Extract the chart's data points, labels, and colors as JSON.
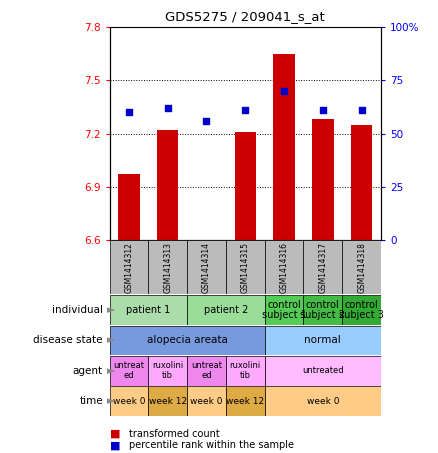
{
  "title": "GDS5275 / 209041_s_at",
  "samples": [
    "GSM1414312",
    "GSM1414313",
    "GSM1414314",
    "GSM1414315",
    "GSM1414316",
    "GSM1414317",
    "GSM1414318"
  ],
  "red_values": [
    6.97,
    7.22,
    6.6,
    7.21,
    7.65,
    7.28,
    7.25
  ],
  "blue_values": [
    60,
    62,
    56,
    61,
    70,
    61,
    61
  ],
  "ylim_left": [
    6.6,
    7.8
  ],
  "ylim_right": [
    0,
    100
  ],
  "yticks_left": [
    6.6,
    6.9,
    7.2,
    7.5,
    7.8
  ],
  "yticks_right": [
    0,
    25,
    50,
    75,
    100
  ],
  "ytick_labels_left": [
    "6.6",
    "6.9",
    "7.2",
    "7.5",
    "7.8"
  ],
  "ytick_labels_right": [
    "0",
    "25",
    "50",
    "75",
    "100%"
  ],
  "bar_color": "#cc0000",
  "dot_color": "#0000cc",
  "ind_spans": [
    [
      0,
      2,
      "patient 1"
    ],
    [
      2,
      4,
      "patient 2"
    ],
    [
      4,
      5,
      "control\nsubject 1"
    ],
    [
      5,
      6,
      "control\nsubject 2"
    ],
    [
      6,
      7,
      "control\nsubject 3"
    ]
  ],
  "ind_colors": [
    "#aaffaa",
    "#99ee99",
    "#88ee88",
    "#77dd77",
    "#66cc66"
  ],
  "dis_spans": [
    [
      0,
      4,
      "alopecia areata"
    ],
    [
      4,
      7,
      "normal"
    ]
  ],
  "dis_colors": [
    "#7799ee",
    "#99bbff"
  ],
  "agt_spans": [
    [
      0,
      1,
      "untreat\ned"
    ],
    [
      1,
      2,
      "ruxolini\ntib"
    ],
    [
      2,
      3,
      "untreat\ned"
    ],
    [
      3,
      4,
      "ruxolini\ntib"
    ],
    [
      4,
      7,
      "untreated"
    ]
  ],
  "agt_colors": [
    "#ee88ee",
    "#ffaaff",
    "#ee88ee",
    "#ffaaff",
    "#ffaaff"
  ],
  "time_spans": [
    [
      0,
      1,
      "week 0"
    ],
    [
      1,
      2,
      "week 12"
    ],
    [
      2,
      3,
      "week 0"
    ],
    [
      3,
      4,
      "week 12"
    ],
    [
      4,
      7,
      "week 0"
    ]
  ],
  "time_colors": [
    "#ffcc77",
    "#ddaa55",
    "#ffcc77",
    "#ddaa55",
    "#ffcc77"
  ],
  "row_labels": [
    "individual",
    "disease state",
    "agent",
    "time"
  ],
  "sample_color": "#bbbbbb"
}
